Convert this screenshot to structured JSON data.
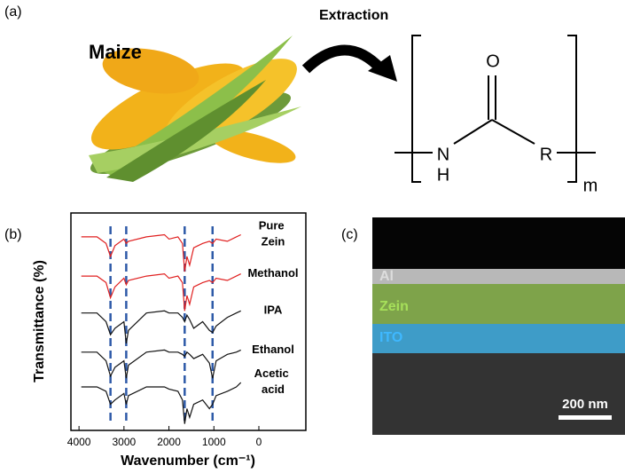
{
  "panel_a": {
    "label": "(a)",
    "plant": "Maize",
    "arrow_label": "Extraction",
    "atoms": {
      "o": "O",
      "n": "N",
      "h": "H",
      "r": "R",
      "m": "m"
    }
  },
  "chart_data": {
    "type": "line",
    "label": "(b)",
    "xlabel": "Wavenumber (cm⁻¹)",
    "ylabel": "Transmittance (%)",
    "x": [
      3950,
      3600,
      3400,
      3300,
      3200,
      3000,
      2950,
      2900,
      2500,
      2100,
      2000,
      1800,
      1700,
      1650,
      1600,
      1540,
      1450,
      1250,
      1100,
      1030,
      950,
      700,
      500,
      400
    ],
    "xlim": [
      4180,
      -1045
    ],
    "xticks": [
      4000,
      3000,
      2000,
      1000,
      0
    ],
    "ylim": [
      0,
      100
    ],
    "reference_lines": [
      3300,
      2950,
      1650,
      1030
    ],
    "reference_color": "#2e5aa8",
    "series": [
      {
        "name": "Pure Zein",
        "color": "#e02020",
        "values": [
          89,
          89,
          86,
          80,
          85,
          88,
          86,
          87,
          89,
          90,
          88,
          89,
          86,
          73,
          80,
          76,
          84,
          86,
          87,
          86,
          88,
          87,
          89,
          90
        ]
      },
      {
        "name": "Methanol",
        "color": "#e02020",
        "values": [
          71,
          71,
          68,
          61,
          66,
          70,
          67,
          69,
          71,
          72,
          70,
          71,
          68,
          55,
          62,
          58,
          66,
          68,
          69,
          68,
          70,
          69,
          71,
          72
        ]
      },
      {
        "name": "IPA",
        "color": "#111111",
        "values": [
          54,
          54,
          50,
          44,
          47,
          50,
          40,
          46,
          54,
          55,
          54,
          54,
          52,
          50,
          53,
          51,
          47,
          50,
          46,
          45,
          48,
          52,
          54,
          55
        ]
      },
      {
        "name": "Ethanol",
        "color": "#111111",
        "values": [
          36,
          36,
          32,
          25,
          29,
          32,
          24,
          30,
          36,
          37,
          36,
          36,
          35,
          34,
          36,
          35,
          33,
          35,
          31,
          24,
          32,
          35,
          36,
          37
        ]
      },
      {
        "name": "Acetic acid",
        "color": "#111111",
        "values": [
          20,
          20,
          18,
          12,
          14,
          17,
          12,
          16,
          20,
          20,
          19,
          18,
          14,
          3,
          10,
          6,
          12,
          14,
          10,
          12,
          16,
          18,
          20,
          22
        ]
      }
    ]
  },
  "panel_c": {
    "label": "(c)",
    "layers": {
      "al": "Al",
      "zein": "Zein",
      "ito": "ITO"
    },
    "scale_bar": "200 nm"
  }
}
